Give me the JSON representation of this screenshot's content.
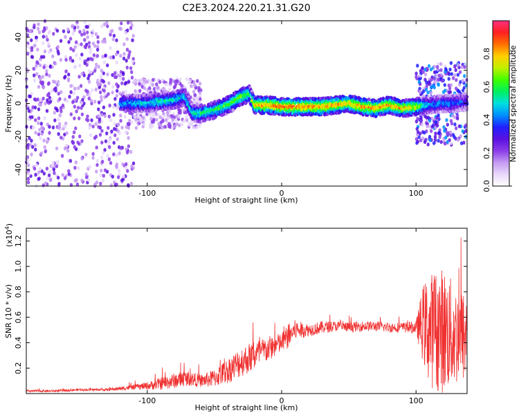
{
  "title": "C2E3.2024.220.21.31.G20",
  "colors": {
    "spectrogram_background": "#ffffff",
    "snr_line": "#f03030",
    "frame": "#000000"
  },
  "chart_data": [
    {
      "type": "heatmap",
      "name": "spectrogram",
      "xlabel": "Height of straight line (km)",
      "ylabel": "Frequency (Hz)",
      "xlim": [
        -190,
        138
      ],
      "ylim": [
        -50,
        50
      ],
      "xticks": [
        -100,
        0,
        100
      ],
      "yticks": [
        -40,
        -20,
        0,
        20,
        40
      ],
      "grid": false,
      "colorbar": {
        "label": "Normalized spectral amplitude",
        "range": [
          0,
          1
        ],
        "ticks": [
          0.0,
          0.2,
          0.4,
          0.6,
          0.8
        ],
        "colormap": [
          "#ffffff",
          "#e8d8fa",
          "#c49af2",
          "#8a3ce8",
          "#5a10e0",
          "#2020ff",
          "#0090ff",
          "#00e0e0",
          "#00f060",
          "#40ff00",
          "#c0f000",
          "#ffd000",
          "#ff7000",
          "#ff2020",
          "#ff3080"
        ]
      },
      "ridge": {
        "x": [
          -120,
          -110,
          -100,
          -90,
          -80,
          -72,
          -66,
          -60,
          -50,
          -40,
          -30,
          -24,
          -20,
          -10,
          0,
          10,
          20,
          30,
          40,
          50,
          60,
          70,
          80,
          90,
          100,
          110,
          120,
          130,
          138
        ],
        "frequency": [
          0,
          0,
          0,
          1,
          2,
          4,
          -6,
          -6,
          -4,
          -1,
          4,
          6,
          -1,
          -1,
          -2,
          -2,
          -2,
          -2,
          -1,
          0,
          -2,
          -3,
          -1,
          -3,
          -2,
          -1,
          0,
          0,
          1
        ],
        "amplitude": [
          0.45,
          0.5,
          0.5,
          0.55,
          0.55,
          0.5,
          0.55,
          0.6,
          0.6,
          0.65,
          0.7,
          0.65,
          0.8,
          0.85,
          0.9,
          0.9,
          0.9,
          0.88,
          0.85,
          0.8,
          0.85,
          0.85,
          0.85,
          0.8,
          0.75,
          0.45,
          0.45,
          0.4,
          0.35
        ]
      },
      "noise_segments": [
        {
          "x": [
            -190,
            -110
          ],
          "freq_spread": [
            -50,
            50
          ],
          "amplitude": 0.2
        },
        {
          "x": [
            -110,
            -60
          ],
          "freq_spread": [
            -15,
            15
          ],
          "amplitude": 0.15
        },
        {
          "x": [
            100,
            138
          ],
          "freq_spread": [
            -25,
            25
          ],
          "amplitude": 0.3
        }
      ]
    },
    {
      "type": "line",
      "name": "snr",
      "xlabel": "Height of straight line (km)",
      "ylabel": "SNR (10 * v/v)",
      "yscale_label": "(x10",
      "yscale_exponent": "4",
      "yscale_suffix": ")",
      "xlim": [
        -190,
        138
      ],
      "ylim": [
        0,
        1.3
      ],
      "xticks": [
        -100,
        0,
        100
      ],
      "yticks": [
        0.2,
        0.4,
        0.6,
        0.8,
        1.0,
        1.2
      ],
      "ytick_labels": [
        "0.2",
        "0.4",
        "0.6",
        "0.8",
        "1.0",
        "1.2"
      ],
      "grid": false,
      "x": [
        -190,
        -170,
        -150,
        -130,
        -120,
        -110,
        -100,
        -90,
        -80,
        -70,
        -60,
        -50,
        -40,
        -30,
        -20,
        -10,
        0,
        5,
        10,
        20,
        30,
        40,
        50,
        60,
        70,
        80,
        90,
        100,
        105,
        110,
        120,
        130,
        138
      ],
      "y": [
        0.02,
        0.02,
        0.03,
        0.03,
        0.04,
        0.05,
        0.06,
        0.08,
        0.1,
        0.12,
        0.1,
        0.12,
        0.18,
        0.25,
        0.3,
        0.35,
        0.4,
        0.45,
        0.5,
        0.5,
        0.52,
        0.53,
        0.52,
        0.53,
        0.53,
        0.52,
        0.52,
        0.52,
        0.55,
        0.5,
        0.5,
        0.45,
        0.45
      ],
      "spread": [
        0.01,
        0.01,
        0.01,
        0.01,
        0.015,
        0.02,
        0.03,
        0.05,
        0.06,
        0.06,
        0.05,
        0.07,
        0.1,
        0.12,
        0.12,
        0.1,
        0.08,
        0.1,
        0.08,
        0.05,
        0.05,
        0.04,
        0.04,
        0.04,
        0.04,
        0.04,
        0.04,
        0.05,
        0.3,
        0.45,
        0.5,
        0.4,
        0.35
      ]
    }
  ]
}
